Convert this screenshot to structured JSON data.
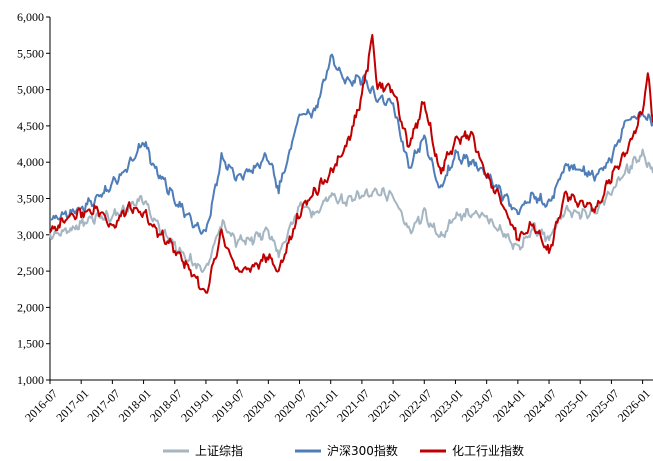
{
  "chart_data": {
    "type": "line",
    "ylim": [
      1000,
      6000
    ],
    "yticks": [
      "1,000",
      "1,500",
      "2,000",
      "2,500",
      "3,000",
      "3,500",
      "4,000",
      "4,500",
      "5,000",
      "5,500",
      "6,000"
    ],
    "ytick_values": [
      1000,
      1500,
      2000,
      2500,
      3000,
      3500,
      4000,
      4500,
      5000,
      5500,
      6000
    ],
    "xticks": [
      "2016-07",
      "2017-01",
      "2017-07",
      "2018-01",
      "2018-07",
      "2019-01",
      "2019-07",
      "2020-01",
      "2020-07",
      "2021-01",
      "2021-07",
      "2022-01",
      "2022-07",
      "2023-01",
      "2023-07",
      "2024-01",
      "2024-07",
      "2025-01",
      "2025-07",
      "2026-01"
    ],
    "x_range": [
      "2016-07",
      "2026-03"
    ],
    "grid": false,
    "legend_position": "bottom",
    "series": [
      {
        "name": "上证综指",
        "color": "#A5B6C2",
        "points": [
          [
            "2016-07",
            2990
          ],
          [
            "2016-10",
            3050
          ],
          [
            "2017-01",
            3150
          ],
          [
            "2017-04",
            3250
          ],
          [
            "2017-07",
            3250
          ],
          [
            "2017-10",
            3380
          ],
          [
            "2018-01",
            3500
          ],
          [
            "2018-03",
            3200
          ],
          [
            "2018-07",
            2850
          ],
          [
            "2018-10",
            2650
          ],
          [
            "2019-01",
            2500
          ],
          [
            "2019-04",
            3150
          ],
          [
            "2019-07",
            2900
          ],
          [
            "2019-10",
            2950
          ],
          [
            "2020-01",
            3050
          ],
          [
            "2020-03",
            2750
          ],
          [
            "2020-07",
            3400
          ],
          [
            "2020-10",
            3300
          ],
          [
            "2021-01",
            3550
          ],
          [
            "2021-04",
            3450
          ],
          [
            "2021-07",
            3550
          ],
          [
            "2021-10",
            3570
          ],
          [
            "2022-01",
            3550
          ],
          [
            "2022-04",
            3050
          ],
          [
            "2022-07",
            3300
          ],
          [
            "2022-10",
            2950
          ],
          [
            "2023-01",
            3250
          ],
          [
            "2023-04",
            3300
          ],
          [
            "2023-07",
            3250
          ],
          [
            "2023-10",
            3050
          ],
          [
            "2024-01",
            2800
          ],
          [
            "2024-04",
            3100
          ],
          [
            "2024-07",
            2950
          ],
          [
            "2024-10",
            3350
          ],
          [
            "2025-01",
            3300
          ],
          [
            "2025-04",
            3300
          ],
          [
            "2025-07",
            3600
          ],
          [
            "2025-10",
            3900
          ],
          [
            "2026-01",
            4100
          ],
          [
            "2026-03",
            3850
          ]
        ]
      },
      {
        "name": "沪深300指数",
        "color": "#4E7DB8",
        "points": [
          [
            "2016-07",
            3200
          ],
          [
            "2016-10",
            3300
          ],
          [
            "2017-01",
            3350
          ],
          [
            "2017-04",
            3500
          ],
          [
            "2017-07",
            3700
          ],
          [
            "2017-10",
            3950
          ],
          [
            "2018-01",
            4300
          ],
          [
            "2018-03",
            3950
          ],
          [
            "2018-07",
            3500
          ],
          [
            "2018-10",
            3200
          ],
          [
            "2019-01",
            3000
          ],
          [
            "2019-04",
            4050
          ],
          [
            "2019-07",
            3800
          ],
          [
            "2019-10",
            3900
          ],
          [
            "2020-01",
            4100
          ],
          [
            "2020-03",
            3600
          ],
          [
            "2020-07",
            4650
          ],
          [
            "2020-10",
            4700
          ],
          [
            "2021-01",
            5450
          ],
          [
            "2021-04",
            5100
          ],
          [
            "2021-07",
            5150
          ],
          [
            "2021-10",
            4900
          ],
          [
            "2022-01",
            4800
          ],
          [
            "2022-04",
            3950
          ],
          [
            "2022-07",
            4350
          ],
          [
            "2022-10",
            3600
          ],
          [
            "2023-01",
            4100
          ],
          [
            "2023-04",
            4000
          ],
          [
            "2023-07",
            3850
          ],
          [
            "2023-10",
            3550
          ],
          [
            "2024-01",
            3300
          ],
          [
            "2024-04",
            3550
          ],
          [
            "2024-07",
            3400
          ],
          [
            "2024-10",
            3950
          ],
          [
            "2025-01",
            3900
          ],
          [
            "2025-04",
            3800
          ],
          [
            "2025-07",
            4050
          ],
          [
            "2025-10",
            4600
          ],
          [
            "2026-01",
            4650
          ],
          [
            "2026-03",
            4550
          ]
        ]
      },
      {
        "name": "化工行业指数",
        "color": "#C00000",
        "points": [
          [
            "2016-07",
            3050
          ],
          [
            "2016-10",
            3200
          ],
          [
            "2017-01",
            3300
          ],
          [
            "2017-04",
            3350
          ],
          [
            "2017-07",
            3100
          ],
          [
            "2017-10",
            3400
          ],
          [
            "2018-01",
            3300
          ],
          [
            "2018-03",
            3100
          ],
          [
            "2018-07",
            2800
          ],
          [
            "2018-10",
            2500
          ],
          [
            "2019-01",
            2200
          ],
          [
            "2019-04",
            3050
          ],
          [
            "2019-07",
            2500
          ],
          [
            "2019-10",
            2550
          ],
          [
            "2020-01",
            2700
          ],
          [
            "2020-03",
            2500
          ],
          [
            "2020-07",
            3300
          ],
          [
            "2020-10",
            3600
          ],
          [
            "2021-01",
            3850
          ],
          [
            "2021-04",
            4200
          ],
          [
            "2021-07",
            4900
          ],
          [
            "2021-09",
            5700
          ],
          [
            "2021-10",
            5050
          ],
          [
            "2022-01",
            5000
          ],
          [
            "2022-04",
            4200
          ],
          [
            "2022-07",
            4850
          ],
          [
            "2022-10",
            3850
          ],
          [
            "2023-01",
            4300
          ],
          [
            "2023-04",
            4400
          ],
          [
            "2023-07",
            3800
          ],
          [
            "2023-10",
            3450
          ],
          [
            "2024-01",
            2950
          ],
          [
            "2024-04",
            3150
          ],
          [
            "2024-07",
            2750
          ],
          [
            "2024-10",
            3550
          ],
          [
            "2025-01",
            3450
          ],
          [
            "2025-04",
            3350
          ],
          [
            "2025-07",
            3800
          ],
          [
            "2025-10",
            4150
          ],
          [
            "2026-01",
            4700
          ],
          [
            "2026-02",
            5200
          ],
          [
            "2026-03",
            4550
          ]
        ]
      }
    ]
  }
}
